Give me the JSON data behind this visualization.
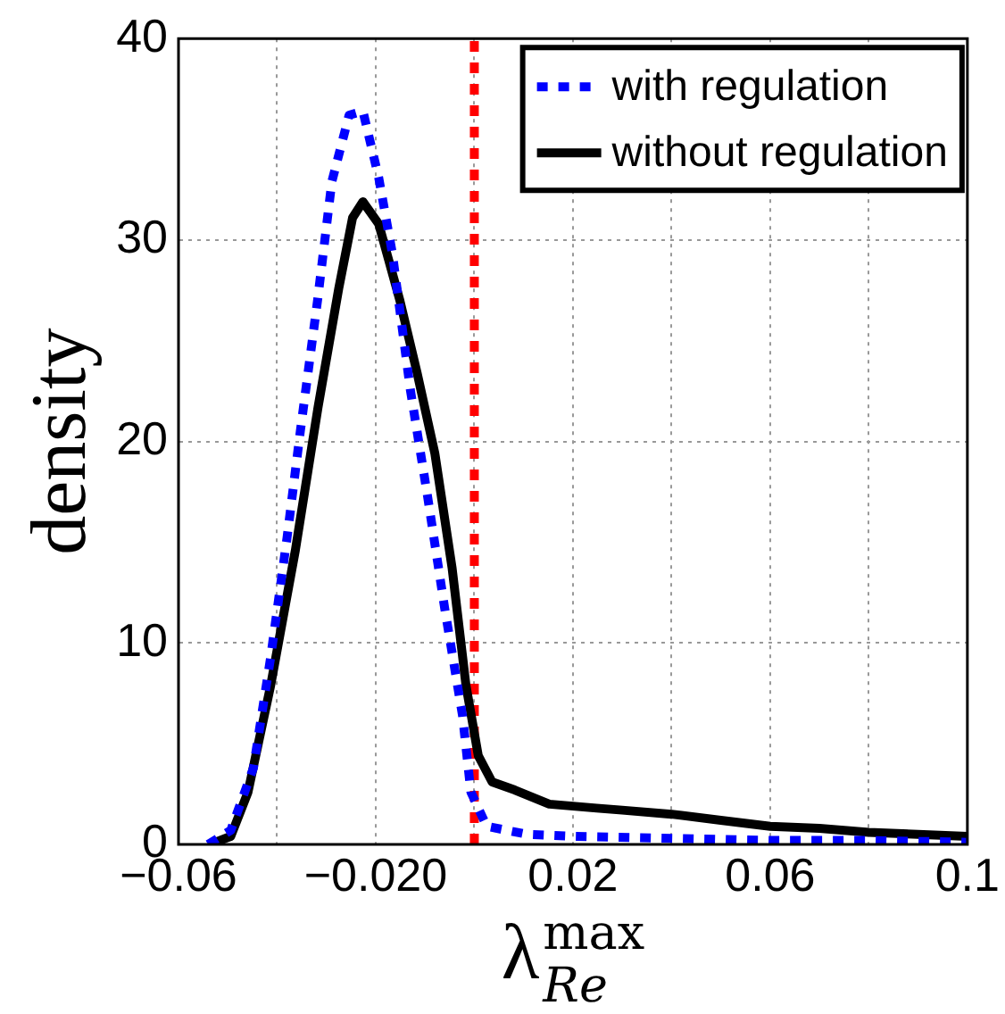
{
  "chart_data": {
    "type": "line",
    "xlabel": "λ$^{max}$$_{Re}$",
    "ylabel": "density",
    "xlim": [
      -0.06,
      0.1
    ],
    "xticks": [
      -0.06,
      {
        "value": -0.04,
        "label": null
      },
      {
        "value": -0.02,
        "label": "−0.020"
      },
      {
        "value": 0,
        "label": null
      },
      0.02,
      {
        "value": 0.04,
        "label": null
      },
      0.06,
      {
        "value": 0.08,
        "label": null
      },
      0.1
    ],
    "ylim": [
      0,
      40
    ],
    "yticks": [
      0,
      10,
      20,
      30,
      40
    ],
    "grid": true,
    "legend": "top right",
    "marker": "none",
    "ref_lines": [
      {
        "axis": "x",
        "value": 0,
        "color": "#ff0000",
        "line_style": "dotted"
      }
    ],
    "series": [
      {
        "name": "with regulation",
        "color": "#0000ff",
        "line_style": "dotted",
        "x": [
          -0.054,
          -0.0494,
          -0.0448,
          -0.0413,
          -0.038,
          -0.0353,
          -0.0318,
          -0.0289,
          -0.0254,
          -0.0226,
          -0.0194,
          -0.0166,
          -0.013,
          -0.0095,
          -0.006,
          -0.0024,
          -0.0007,
          0.0025,
          0.0107,
          0.02,
          0.04,
          0.06,
          0.08,
          0.1
        ],
        "values": [
          0,
          0.7,
          3.8,
          9.3,
          15.2,
          20.5,
          27,
          32.9,
          36.2,
          36.4,
          33.1,
          29.3,
          22.6,
          17.3,
          11.7,
          6.4,
          2.6,
          0.9,
          0.5,
          0.4,
          0.3,
          0.2,
          0.2,
          0.1
        ]
      },
      {
        "name": "without regulation",
        "color": "#000000",
        "line_style": "solid",
        "x": [
          -0.0536,
          -0.0494,
          -0.0459,
          -0.0413,
          -0.0363,
          -0.0317,
          -0.0275,
          -0.0247,
          -0.0226,
          -0.0194,
          -0.0151,
          -0.0116,
          -0.008,
          -0.0045,
          -0.0017,
          0.0008,
          0.0036,
          0.0082,
          0.0152,
          0.0248,
          0.03,
          0.04,
          0.05,
          0.06,
          0.07,
          0.08,
          0.09,
          0.1
        ],
        "values": [
          0,
          0.4,
          2.6,
          7.9,
          14.6,
          21.7,
          27.6,
          31.1,
          31.9,
          30.8,
          27,
          23.4,
          19.4,
          13.7,
          7.9,
          4.4,
          3.1,
          2.7,
          2,
          1.8,
          1.7,
          1.5,
          1.2,
          0.9,
          0.8,
          0.6,
          0.5,
          0.4
        ]
      }
    ]
  }
}
